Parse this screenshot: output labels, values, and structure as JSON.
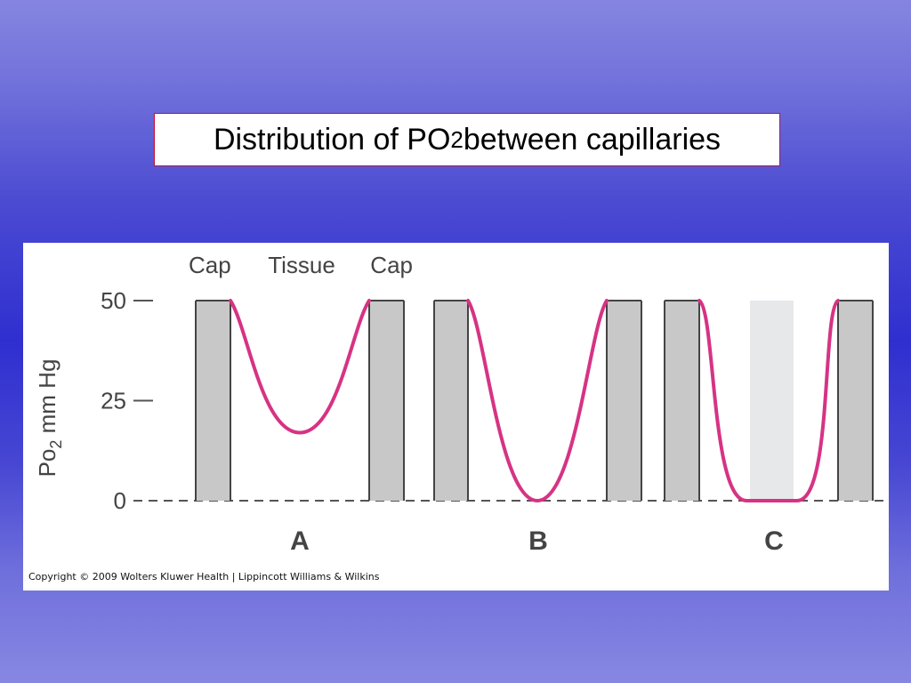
{
  "slide": {
    "title_main": "Distribution of PO",
    "title_sub": "2",
    "title_rest": " between capillaries"
  },
  "figure": {
    "y_axis": {
      "label_main": "Po",
      "label_sub": "2",
      "label_rest": " mm Hg",
      "ticks": [
        {
          "label": "50",
          "value": 50
        },
        {
          "label": "25",
          "value": 25
        },
        {
          "label": "0",
          "value": 0
        }
      ]
    },
    "top_labels": [
      "Cap",
      "Tissue",
      "Cap"
    ],
    "panels": [
      {
        "label": "A",
        "min_po2": 17,
        "flat_bottom": false,
        "middle_capillary": false
      },
      {
        "label": "B",
        "min_po2": 0,
        "flat_bottom": false,
        "middle_capillary": false
      },
      {
        "label": "C",
        "min_po2": 0,
        "flat_bottom": true,
        "middle_capillary": true
      }
    ],
    "capillary_po2": 50,
    "copyright": "Copyright © 2009 Wolters Kluwer Health | Lippincott Williams & Wilkins",
    "colors": {
      "curve": "#d63384",
      "capillary": "#c8c8c8",
      "capillary_light": "#e6e8ea",
      "axis": "#555555"
    }
  }
}
